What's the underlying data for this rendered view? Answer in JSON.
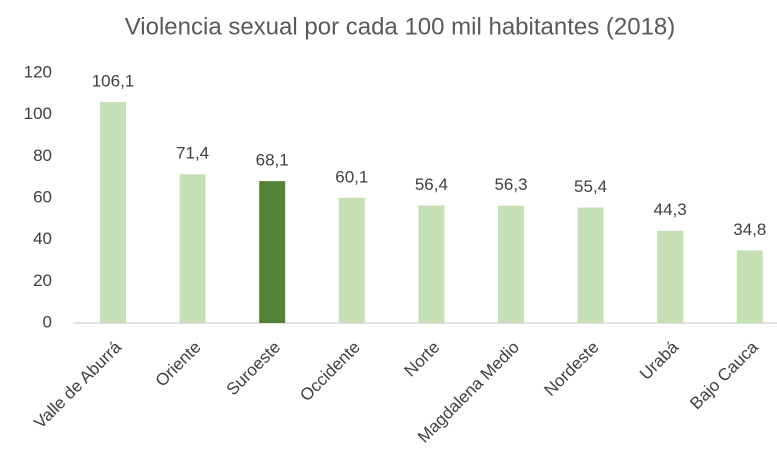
{
  "chart_data": {
    "type": "bar",
    "title": "Violencia sexual por cada 100 mil habitantes (2018)",
    "categories": [
      "Valle de Aburrá",
      "Oriente",
      "Suroeste",
      "Occidente",
      "Norte",
      "Magdalena Medio",
      "Nordeste",
      "Urabá",
      "Bajo Cauca"
    ],
    "values": [
      106.1,
      71.4,
      68.1,
      60.1,
      56.4,
      56.3,
      55.4,
      44.3,
      34.8
    ],
    "value_labels": [
      "106,1",
      "71,4",
      "68,1",
      "60,1",
      "56,4",
      "56,3",
      "55,4",
      "44,3",
      "34,8"
    ],
    "colors": [
      "#c5e0b4",
      "#c5e0b4",
      "#548235",
      "#c5e0b4",
      "#c5e0b4",
      "#c5e0b4",
      "#c5e0b4",
      "#c5e0b4",
      "#c5e0b4"
    ],
    "ylim": [
      0,
      120
    ],
    "yticks": [
      0,
      20,
      40,
      60,
      80,
      100,
      120
    ],
    "grid": false
  }
}
